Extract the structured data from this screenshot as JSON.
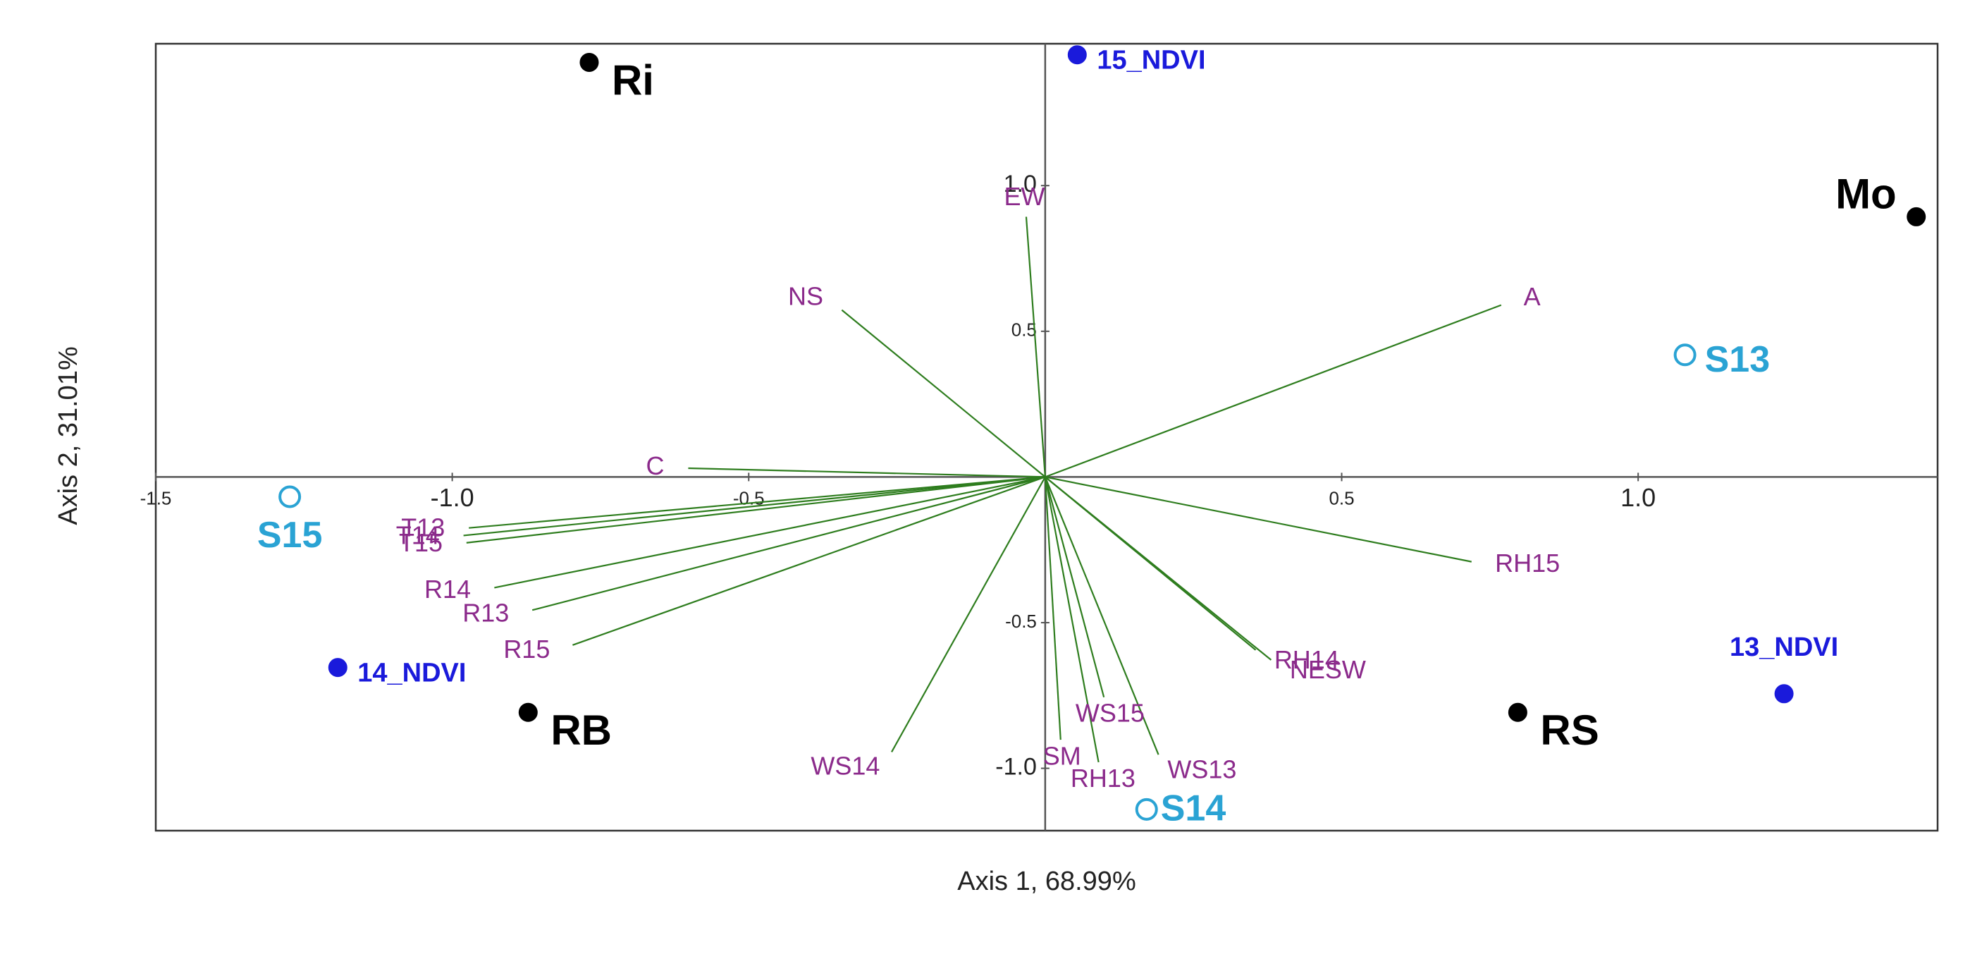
{
  "chart_data": {
    "type": "biplot",
    "x_label": "Axis 1, 68.99%",
    "y_label": "Axis 2, 31.01%",
    "xlim": [
      -1.5,
      1.505
    ],
    "ylim": [
      -1.214,
      1.487
    ],
    "xticks": [
      -1.5,
      {
        "value": -1,
        "label": "-1.0"
      },
      -0.5,
      0.5,
      {
        "value": 1,
        "label": "1.0"
      }
    ],
    "yticks": [
      {
        "value": 1,
        "label": "1.0"
      },
      0.5,
      -0.5,
      {
        "value": -1,
        "label": "-1.0"
      }
    ],
    "series": [
      {
        "marker": "filled",
        "color": "#000000",
        "labels": [
          "Ri",
          "Mo",
          "RB",
          "RS"
        ],
        "x": [
          -0.769,
          1.469,
          -0.872,
          0.797
        ],
        "values": [
          1.423,
          0.893,
          -0.808,
          -0.808
        ]
      },
      {
        "marker": "filled",
        "color": "#1a1adb",
        "labels": [
          "15_NDVI",
          "14_NDVI",
          "13_NDVI"
        ],
        "x": [
          0.054,
          -1.193,
          1.246
        ],
        "values": [
          1.449,
          -0.654,
          -0.744
        ]
      },
      {
        "marker": "open",
        "color": "#2aa3d4",
        "labels": [
          "S13",
          "S14",
          "S15"
        ],
        "x": [
          1.079,
          0.171,
          -1.274
        ],
        "values": [
          0.419,
          -1.141,
          -0.068
        ]
      },
      {
        "marker": "vector",
        "color": "#2e7d1e",
        "label_color": "#8b2a8b",
        "labels": [
          "EW",
          "NS",
          "A",
          "C",
          "T13",
          "T14",
          "T15",
          "R14",
          "R13",
          "R15",
          "WS14",
          "SM",
          "RH13",
          "WS13",
          "WS15",
          "RH14",
          "NESW",
          "RH15"
        ],
        "x": [
          -0.032,
          -0.343,
          0.769,
          -0.602,
          -0.972,
          -0.981,
          -0.976,
          -0.929,
          -0.865,
          -0.797,
          -0.259,
          0.026,
          0.09,
          0.191,
          0.099,
          0.355,
          0.381,
          0.719
        ],
        "values": [
          0.893,
          0.573,
          0.59,
          0.03,
          -0.175,
          -0.201,
          -0.226,
          -0.38,
          -0.457,
          -0.577,
          -0.944,
          -0.902,
          -0.979,
          -0.953,
          -0.756,
          -0.594,
          -0.628,
          -0.291
        ]
      }
    ]
  }
}
